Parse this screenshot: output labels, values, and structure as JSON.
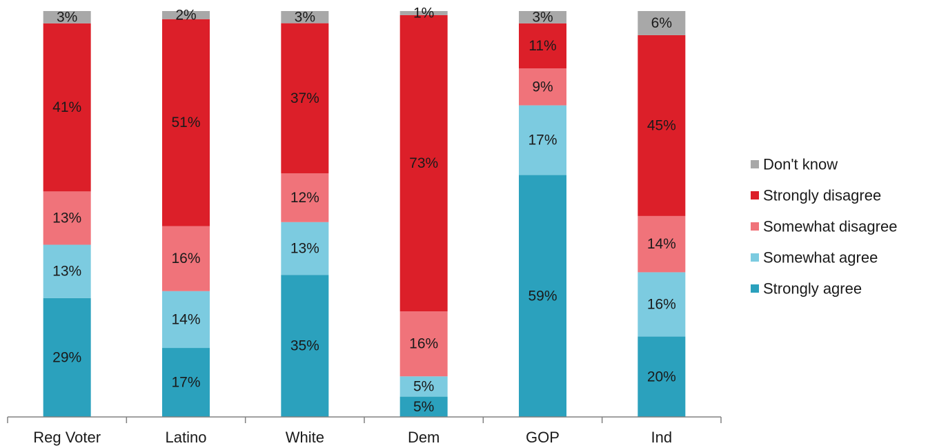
{
  "chart_data": {
    "type": "bar",
    "stacked": true,
    "percent_stacked": true,
    "categories": [
      "Reg Voter",
      "Latino",
      "White",
      "Dem",
      "GOP",
      "Ind"
    ],
    "series": [
      {
        "name": "Strongly agree",
        "color": "#2ba1bd",
        "values": [
          29,
          17,
          35,
          5,
          59,
          20
        ],
        "labels": [
          "29%",
          "17%",
          "35%",
          "5%",
          "59%",
          "20%"
        ]
      },
      {
        "name": "Somewhat agree",
        "color": "#7ccbe0",
        "values": [
          13,
          14,
          13,
          5,
          17,
          16
        ],
        "labels": [
          "13%",
          "14%",
          "13%",
          "5%",
          "17%",
          "16%"
        ]
      },
      {
        "name": "Somewhat disagree",
        "color": "#f0737a",
        "values": [
          13,
          16,
          12,
          16,
          9,
          14
        ],
        "labels": [
          "13%",
          "16%",
          "12%",
          "16%",
          "9%",
          "14%"
        ]
      },
      {
        "name": "Strongly disagree",
        "color": "#dc1f29",
        "values": [
          41,
          51,
          37,
          73,
          11,
          45
        ],
        "labels": [
          "41%",
          "51%",
          "37%",
          "73%",
          "11%",
          "45%"
        ]
      },
      {
        "name": "Don't know",
        "color": "#a8a8a8",
        "values": [
          3,
          2,
          3,
          1,
          3,
          6
        ],
        "labels": [
          "3%",
          "2%",
          "3%",
          "1%",
          "3%",
          "6%"
        ]
      }
    ],
    "legend_order": [
      "Don't know",
      "Strongly disagree",
      "Somewhat disagree",
      "Somewhat agree",
      "Strongly agree"
    ],
    "legend_position": "right",
    "grid": false,
    "title": "",
    "xlabel": "",
    "ylabel": ""
  }
}
